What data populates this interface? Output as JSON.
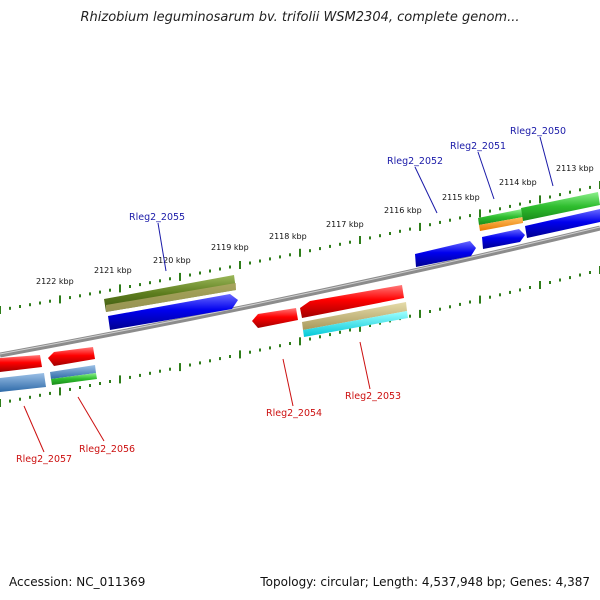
{
  "title": "Rhizobium leguminosarum bv. trifolii WSM2304, complete genom...",
  "footer": {
    "accession": "Accession: NC_011369",
    "topology": "Topology: circular; Length: 4,537,948 bp; Genes: 4,387"
  },
  "colors": {
    "backbone": "#8c8c8c",
    "tick": "#2e7d1a",
    "label_forward": "#1a1aa8",
    "label_reverse": "#cc1010"
  },
  "kbp_labels": [
    "2113 kbp",
    "2114 kbp",
    "2115 kbp",
    "2116 kbp",
    "2117 kbp",
    "2118 kbp",
    "2119 kbp",
    "2120 kbp",
    "2121 kbp",
    "2122 kbp"
  ],
  "gene_labels": [
    "Rleg2_2050",
    "Rleg2_2051",
    "Rleg2_2052",
    "Rleg2_2053",
    "Rleg2_2054",
    "Rleg2_2055",
    "Rleg2_2056",
    "Rleg2_2057"
  ]
}
